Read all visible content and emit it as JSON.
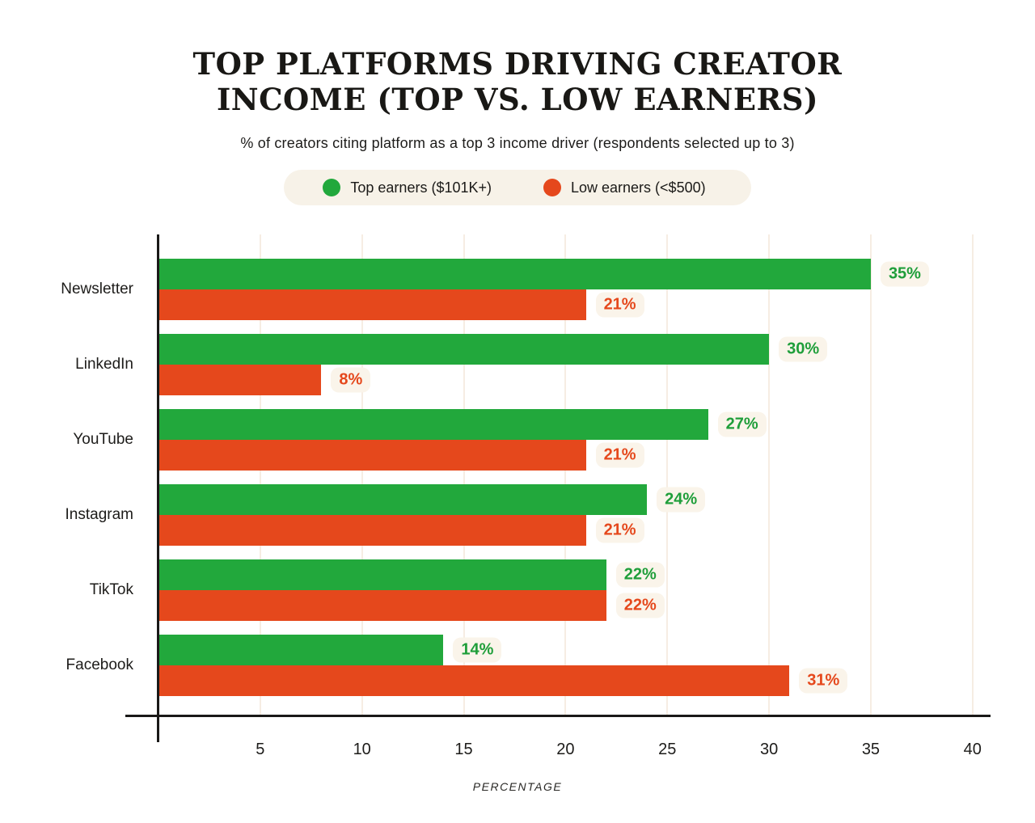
{
  "title": {
    "line1": "TOP PLATFORMS DRIVING CREATOR",
    "line2": "INCOME (TOP VS. LOW EARNERS)"
  },
  "subtitle": "% of creators citing platform as a top 3 income driver (respondents selected up to 3)",
  "legend": {
    "background": "#f7f2e8",
    "items": [
      {
        "label": "Top earners ($101K+)",
        "color": "#22a83c"
      },
      {
        "label": "Low earners (<$500)",
        "color": "#e5481c"
      }
    ]
  },
  "chart_data": {
    "type": "bar",
    "orientation": "horizontal",
    "title": "TOP PLATFORMS DRIVING CREATOR INCOME (TOP VS. LOW EARNERS)",
    "subtitle": "% of creators citing platform as a top 3 income driver (respondents selected up to 3)",
    "categories": [
      "Newsletter",
      "LinkedIn",
      "YouTube",
      "Instagram",
      "TikTok",
      "Facebook"
    ],
    "series": [
      {
        "name": "Top earners ($101K+)",
        "color": "#22a83c",
        "label_color": "#1f9e3a",
        "values": [
          35,
          30,
          27,
          24,
          22,
          14
        ]
      },
      {
        "name": "Low earners (<$500)",
        "color": "#e5481c",
        "label_color": "#e5481c",
        "values": [
          21,
          8,
          21,
          21,
          22,
          31
        ]
      }
    ],
    "value_suffix": "%",
    "xlabel": "PERCENTAGE",
    "x_ticks": [
      5,
      10,
      15,
      20,
      25,
      30,
      35,
      40
    ],
    "xlim": [
      0,
      41
    ],
    "grid": true,
    "gridline_color": "#f6ede3",
    "axis_color": "#1a1918",
    "value_label_background": "#faf4ea",
    "legend_position": "top"
  }
}
